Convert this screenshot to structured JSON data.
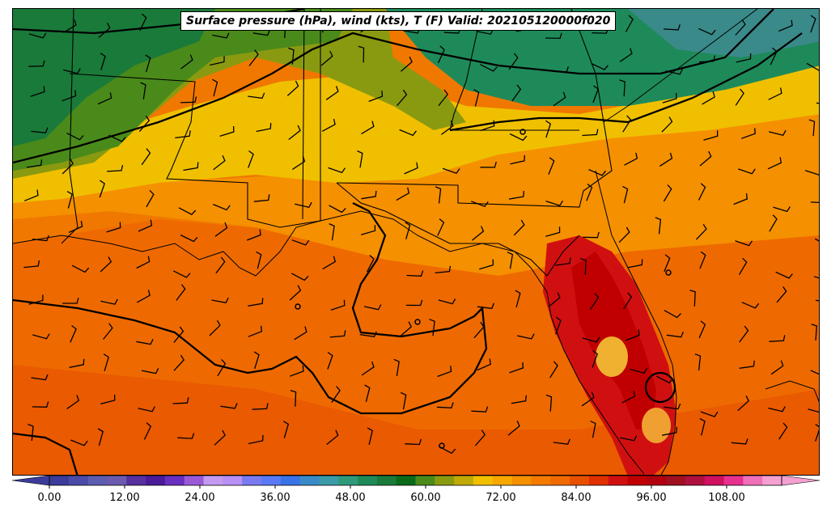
{
  "title": "Surface pressure (hPa), wind (kts), T (F) Valid: 202105120000f020",
  "colorbar": {
    "tick_labels": [
      "0.00",
      "12.00",
      "24.00",
      "36.00",
      "48.00",
      "60.00",
      "72.00",
      "84.00",
      "96.00",
      "108.00"
    ],
    "colors": [
      "#3b3b9a",
      "#4a4aa8",
      "#5c5cb0",
      "#6b5aae",
      "#55309e",
      "#4a1a9a",
      "#6a2fc0",
      "#9a5ad8",
      "#c49af0",
      "#b890f5",
      "#7a7af0",
      "#5a7af5",
      "#3a72e8",
      "#3a8ac8",
      "#3a9aa8",
      "#2e9a7a",
      "#1e8a5a",
      "#1a7a3a",
      "#0a6a1a",
      "#4a8a1a",
      "#8a9a10",
      "#c0aa08",
      "#f0c000",
      "#f7a800",
      "#f59000",
      "#f57a00",
      "#f06a00",
      "#e85000",
      "#e03000",
      "#d01010",
      "#c00000",
      "#b00010",
      "#a01020",
      "#b01040",
      "#d01060",
      "#e83090",
      "#f070b8",
      "#f5a0d0"
    ]
  },
  "legend": {
    "pressure": "Surface pressure (hPa)",
    "wind": "wind (kts)",
    "temperature": "T (F)"
  },
  "valid_time": "202105120000f020"
}
